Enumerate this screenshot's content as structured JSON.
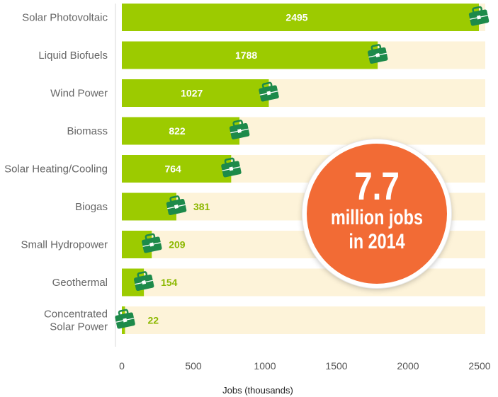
{
  "chart_data": {
    "type": "bar",
    "orientation": "horizontal",
    "categories": [
      [
        "Solar Photovoltaic"
      ],
      [
        "Liquid Biofuels"
      ],
      [
        "Wind Power"
      ],
      [
        "Biomass"
      ],
      [
        "Solar Heating/Cooling"
      ],
      [
        "Biogas"
      ],
      [
        "Small Hydropower"
      ],
      [
        "Geothermal"
      ],
      [
        "Concentrated",
        "Solar Power"
      ]
    ],
    "values": [
      2495,
      1788,
      1027,
      822,
      764,
      381,
      209,
      154,
      22
    ],
    "xlabel": "Jobs (thousands)",
    "xlim": [
      0,
      2500
    ],
    "xticks": [
      0,
      500,
      1000,
      1500,
      2000,
      2500
    ],
    "grid": false,
    "colors": {
      "bar": "#9ccb00",
      "track": "#fdf3d9",
      "value_outside": "#8cb800",
      "icon": "#1d8a4a",
      "badge": "#f26b35"
    },
    "icon": "briefcase-icon"
  },
  "badge": {
    "big": "7.7",
    "line1": "million jobs",
    "line2": "in 2014"
  }
}
